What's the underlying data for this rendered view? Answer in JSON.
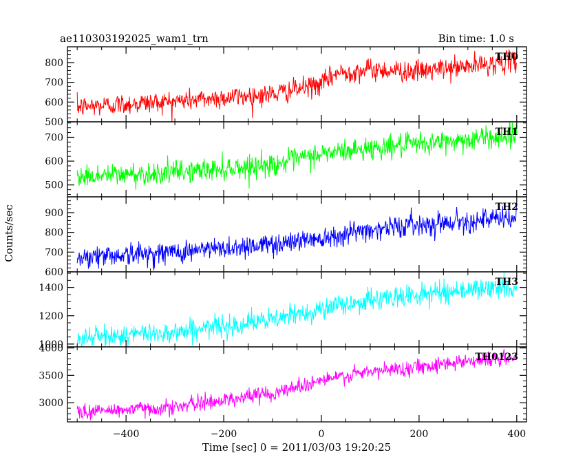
{
  "header": {
    "left_title": "ae110303192025_wam1_trn",
    "right_title": "Bin time: 1.0 s"
  },
  "chart_data": {
    "type": "line",
    "title": "ae110303192025_wam1_trn",
    "subtitle": "Bin time: 1.0 s",
    "xlabel": "Time [sec] 0 = 2011/03/03 19:20:25",
    "ylabel": "Counts/sec",
    "xlim": [
      -520,
      420
    ],
    "x_ticks": [
      -400,
      -200,
      0,
      200,
      400
    ],
    "x_tick_labels": [
      "−400",
      "−200",
      "0",
      "200",
      "400"
    ],
    "x_minor_step": 50,
    "bin_time_s": 1.0,
    "x_range": [
      -500,
      400
    ],
    "panels": [
      {
        "name": "TH0",
        "color": "#ff0000",
        "ylim": [
          500,
          880
        ],
        "y_ticks": [
          500,
          600,
          700,
          800
        ],
        "y_minor_step": 20,
        "trend": [
          [
            -500,
            575
          ],
          [
            -300,
            605
          ],
          [
            -100,
            640
          ],
          [
            0,
            690
          ],
          [
            30,
            745
          ],
          [
            100,
            765
          ],
          [
            200,
            755
          ],
          [
            300,
            780
          ],
          [
            400,
            810
          ]
        ],
        "noise": 27
      },
      {
        "name": "TH1",
        "color": "#00ff00",
        "ylim": [
          450,
          765
        ],
        "y_ticks": [
          500,
          600,
          700
        ],
        "y_minor_step": 20,
        "trend": [
          [
            -500,
            535
          ],
          [
            -300,
            553
          ],
          [
            -100,
            585
          ],
          [
            0,
            630
          ],
          [
            100,
            655
          ],
          [
            200,
            670
          ],
          [
            300,
            690
          ],
          [
            400,
            710
          ]
        ],
        "noise": 24
      },
      {
        "name": "TH2",
        "color": "#0000ff",
        "ylim": [
          600,
          980
        ],
        "y_ticks": [
          600,
          700,
          800,
          900
        ],
        "y_minor_step": 20,
        "trend": [
          [
            -500,
            675
          ],
          [
            -300,
            700
          ],
          [
            -100,
            740
          ],
          [
            0,
            775
          ],
          [
            100,
            815
          ],
          [
            200,
            840
          ],
          [
            300,
            860
          ],
          [
            400,
            870
          ]
        ],
        "noise": 28
      },
      {
        "name": "TH3",
        "color": "#00ffff",
        "ylim": [
          980,
          1510
        ],
        "y_ticks": [
          1000,
          1200,
          1400
        ],
        "y_minor_step": 50,
        "trend": [
          [
            -500,
            1040
          ],
          [
            -300,
            1085
          ],
          [
            -100,
            1170
          ],
          [
            0,
            1250
          ],
          [
            100,
            1310
          ],
          [
            200,
            1350
          ],
          [
            300,
            1385
          ],
          [
            400,
            1400
          ]
        ],
        "noise": 38
      },
      {
        "name": "TH0123",
        "color": "#ff00ff",
        "ylim": [
          2650,
          4020
        ],
        "y_ticks": [
          3000,
          3500,
          4000
        ],
        "y_minor_step": 100,
        "trend": [
          [
            -500,
            2830
          ],
          [
            -300,
            2920
          ],
          [
            -100,
            3180
          ],
          [
            0,
            3410
          ],
          [
            100,
            3560
          ],
          [
            200,
            3660
          ],
          [
            300,
            3770
          ],
          [
            400,
            3810
          ]
        ],
        "noise": 70
      }
    ]
  }
}
